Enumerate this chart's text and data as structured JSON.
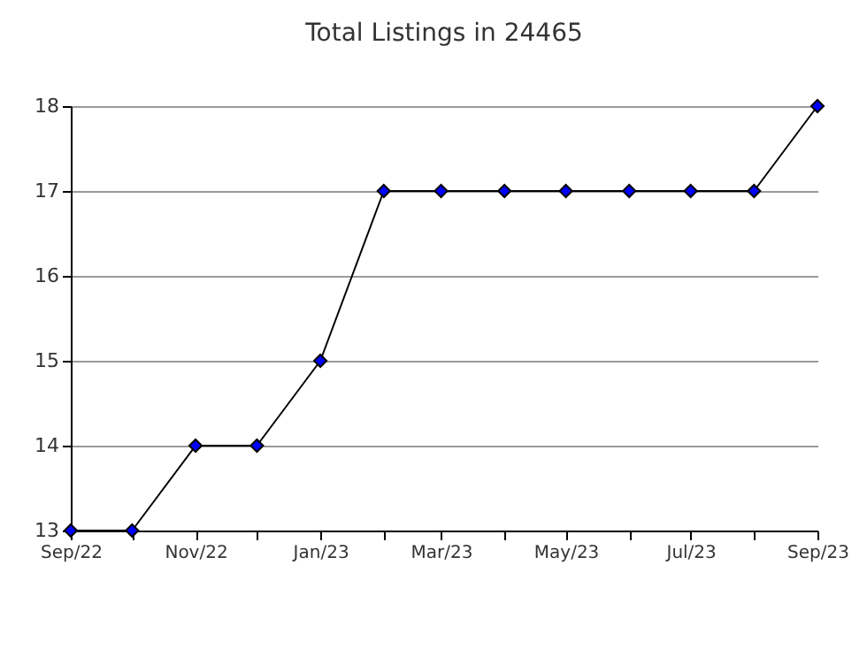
{
  "chart_data": {
    "type": "line",
    "title": "Total Listings in 24465",
    "x": [
      "2022-09",
      "2022-10",
      "2022-11",
      "2022-12",
      "2023-01",
      "2023-02",
      "2023-03",
      "2023-04",
      "2023-05",
      "2023-06",
      "2023-07",
      "2023-08",
      "2023-09"
    ],
    "series": [
      {
        "color": "#0000ff",
        "values": [
          13,
          13,
          14,
          14,
          15,
          17,
          17,
          17,
          17,
          17,
          17,
          17,
          18
        ]
      }
    ],
    "xlim": [
      "2022-09",
      "2023-09"
    ],
    "xticks": [
      {
        "value": "2022-09",
        "label": "Sep/22"
      },
      {
        "value": "2022-10",
        "label": null
      },
      {
        "value": "2022-11",
        "label": "Nov/22"
      },
      {
        "value": "2022-12",
        "label": null
      },
      {
        "value": "2023-01",
        "label": "Jan/23"
      },
      {
        "value": "2023-02",
        "label": null
      },
      {
        "value": "2023-03",
        "label": "Mar/23"
      },
      {
        "value": "2023-04",
        "label": null
      },
      {
        "value": "2023-05",
        "label": "May/23"
      },
      {
        "value": "2023-06",
        "label": null
      },
      {
        "value": "2023-07",
        "label": "Jul/23"
      },
      {
        "value": "2023-08",
        "label": null
      },
      {
        "value": "2023-09",
        "label": "Sep/23"
      }
    ],
    "ylim": [
      13,
      18
    ],
    "yticks": [
      13,
      14,
      15,
      16,
      17,
      18
    ],
    "grid": "y",
    "marker": "diamond",
    "line_style": "solid",
    "legend": false
  }
}
